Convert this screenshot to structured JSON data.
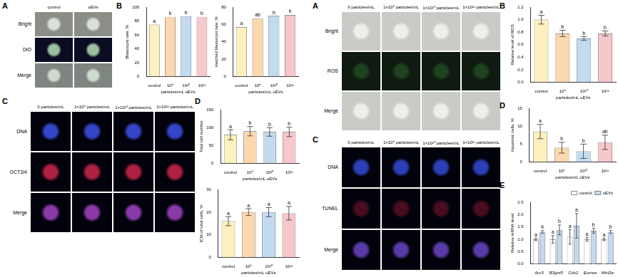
{
  "figures": [
    {
      "panel_labels": [
        "A",
        "B",
        "C",
        "D"
      ],
      "image_panels": [
        {
          "columns": [
            "control",
            "oEVs"
          ],
          "rows": [
            "Bright",
            "DiO",
            "Merge"
          ]
        },
        {
          "columns": [
            "0 particles/mL",
            "1×10⁹ particles/mL",
            "1×10¹⁰ particles/mL",
            "1×10¹¹ particles/mL"
          ],
          "rows": [
            "DNA",
            "OCT3/4",
            "Merge"
          ]
        }
      ]
    },
    {
      "panel_labels": [
        "A",
        "B",
        "C",
        "D",
        "E"
      ],
      "image_panels": [
        {
          "columns": [
            "0 particles/mL",
            "1×10⁹ particles/mL",
            "1×10¹⁰ particles/mL",
            "1×10¹¹ particles/mL"
          ],
          "rows": [
            "Bright",
            "ROS",
            "Merge"
          ]
        },
        {
          "columns": [
            "0 particles/mL",
            "1×10⁹ particles/mL",
            "1×10¹⁰ particles/mL",
            "1×10¹¹ particles/mL"
          ],
          "rows": [
            "DNA",
            "TUNEL",
            "Merge"
          ]
        }
      ]
    }
  ],
  "chart_data": [
    {
      "type": "bar",
      "y_label": "Blastocyst rate, %",
      "x_label": "particles/mL oEVs",
      "categories": [
        "control",
        "10⁹",
        "10¹⁰",
        "10¹¹"
      ],
      "series": [
        {
          "values": [
            75,
            86,
            87,
            86
          ],
          "colors": [
            "#fdf1bf",
            "#fbd8ae",
            "#c3dbf1",
            "#f7c7cb"
          ],
          "letters": [
            "a",
            "b",
            "b",
            "b"
          ]
        }
      ],
      "ylim": [
        0,
        100
      ],
      "yticks": [
        0,
        20,
        40,
        60,
        80,
        100
      ],
      "grid": false
    },
    {
      "type": "bar",
      "y_label": "Hatched blastocyst rate, %",
      "x_label": "particles/mL oEVs",
      "categories": [
        "control",
        "10⁹",
        "10¹⁰",
        "10¹¹"
      ],
      "series": [
        {
          "values": [
            57,
            67,
            70,
            71
          ],
          "colors": [
            "#fdf1bf",
            "#fbd8ae",
            "#c3dbf1",
            "#f7c7cb"
          ],
          "letters": [
            "a",
            "ab",
            "b",
            "b"
          ]
        }
      ],
      "ylim": [
        0,
        80
      ],
      "yticks": [
        0,
        20,
        40,
        60,
        80
      ],
      "grid": false
    },
    {
      "type": "bar",
      "y_label": "Total cell number",
      "x_label": "particles/mL oEVs",
      "categories": [
        "control",
        "10⁹",
        "10¹⁰",
        "10¹¹"
      ],
      "series": [
        {
          "values": [
            80,
            90,
            88,
            88
          ],
          "errors": [
            14,
            13,
            12,
            13
          ],
          "colors": [
            "#fdf1bf",
            "#fbd8ae",
            "#c3dbf1",
            "#f7c7cb"
          ],
          "letters": [
            "a",
            "b",
            "b",
            "b"
          ]
        }
      ],
      "ylim": [
        0,
        150
      ],
      "yticks": [
        0,
        50,
        100,
        150
      ],
      "grid": false
    },
    {
      "type": "bar",
      "y_label": "ICM of total cells, %",
      "x_label": "particles/mL oEVs",
      "categories": [
        "control",
        "10⁹",
        "10¹⁰",
        "10¹¹"
      ],
      "series": [
        {
          "values": [
            16,
            20,
            20,
            19.5
          ],
          "errors": [
            2,
            1.5,
            2,
            3
          ],
          "colors": [
            "#fdf1bf",
            "#fbd8ae",
            "#c3dbf1",
            "#f7c7cb"
          ],
          "letters": [
            "a",
            "a",
            "a",
            "a"
          ]
        }
      ],
      "ylim": [
        0,
        30
      ],
      "yticks": [
        0,
        10,
        20,
        30
      ],
      "grid": false
    },
    {
      "type": "bar",
      "y_label": "Relative level of ROS",
      "x_label": "particles/mL oEVs",
      "categories": [
        "control",
        "10⁹",
        "10¹⁰",
        "10¹¹"
      ],
      "series": [
        {
          "values": [
            1.0,
            0.78,
            0.7,
            0.78
          ],
          "errors": [
            0.07,
            0.05,
            0.03,
            0.04
          ],
          "colors": [
            "#fdf1bf",
            "#fbd8ae",
            "#c3dbf1",
            "#f7c7cb"
          ],
          "letters": [
            "a",
            "b",
            "b",
            "b"
          ]
        }
      ],
      "ylim": [
        0,
        1.2
      ],
      "yticks": [
        {
          "value": 0,
          "label": "0.0"
        },
        {
          "value": 0.2,
          "label": "0.2"
        },
        {
          "value": 0.4,
          "label": "0.4"
        },
        {
          "value": 0.6,
          "label": "0.6"
        },
        {
          "value": 0.8,
          "label": "0.8"
        },
        {
          "value": 1,
          "label": "1.0"
        },
        {
          "value": 1.2,
          "label": "1.2"
        }
      ],
      "grid": false
    },
    {
      "type": "bar",
      "y_label": "Apoptotic cells, %",
      "x_label": "particles/mL oEVs",
      "categories": [
        "control",
        "10⁹",
        "10¹⁰",
        "10¹¹"
      ],
      "series": [
        {
          "values": [
            8.5,
            4,
            3,
            5.5
          ],
          "errors": [
            2,
            1.5,
            2,
            2
          ],
          "colors": [
            "#fdf1bf",
            "#fbd8ae",
            "#c3dbf1",
            "#f7c7cb"
          ],
          "letters": [
            "a",
            "b",
            "b",
            "ab"
          ]
        }
      ],
      "ylim": [
        0,
        15
      ],
      "yticks": [
        0,
        5,
        10,
        15
      ],
      "grid": false
    },
    {
      "type": "bar",
      "y_label": "Relative mRNA level",
      "categories": [
        "Acr3",
        "B3gnt5",
        "Cdx2",
        "Eomes",
        "Wnt3a"
      ],
      "series": [
        {
          "name": "control",
          "color": "#ffffff",
          "values": [
            1.0,
            1.0,
            1.1,
            1.0,
            1.0
          ],
          "errors": [
            0.05,
            0.15,
            0.3,
            0.08,
            0.05
          ],
          "letters": [
            "a",
            "a",
            "a",
            "a",
            "a"
          ]
        },
        {
          "name": "oEVs",
          "color": "#c5d8ee",
          "values": [
            1.3,
            1.38,
            1.55,
            1.35,
            1.3
          ],
          "errors": [
            0.05,
            0.2,
            0.5,
            0.1,
            0.06
          ],
          "letters": [
            "b",
            "b",
            "a",
            "b",
            "b"
          ]
        }
      ],
      "ylim": [
        0,
        2.5
      ],
      "yticks": [
        {
          "value": 0,
          "label": "0.0"
        },
        {
          "value": 0.5,
          "label": "0.5"
        },
        {
          "value": 1,
          "label": "1.0"
        },
        {
          "value": 1.5,
          "label": "1.5"
        },
        {
          "value": 2,
          "label": "2.0"
        },
        {
          "value": 2.5,
          "label": "2.5"
        }
      ],
      "legend": "upper right",
      "grid": false
    }
  ]
}
